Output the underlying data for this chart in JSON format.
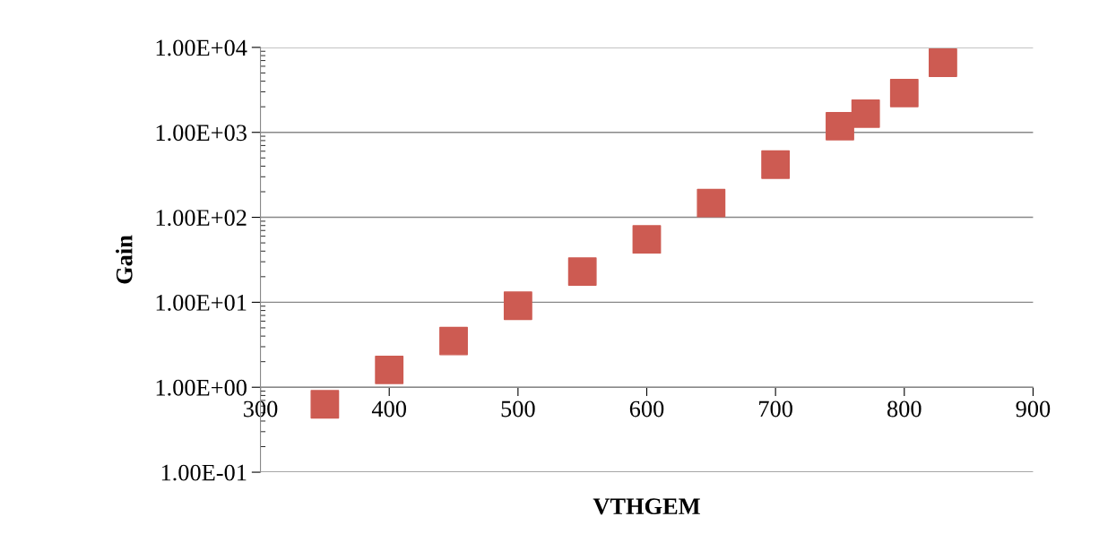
{
  "chart_data": {
    "type": "scatter",
    "xlabel": "VTHGEM",
    "ylabel": "Gain",
    "log": "y",
    "grid": "y",
    "marker": "square",
    "x": [
      350,
      400,
      450,
      500,
      550,
      600,
      650,
      700,
      750,
      770,
      800,
      830
    ],
    "series": [
      {
        "color": "#cd5b52",
        "values": [
          0.63,
          1.6,
          3.5,
          9.1,
          23,
          55,
          147,
          417,
          1180,
          1660,
          2900,
          6600
        ]
      }
    ],
    "xlim": [
      300,
      900
    ],
    "xticks": [
      300,
      400,
      500,
      600,
      700,
      800,
      900
    ],
    "ylim": [
      0.1,
      10000
    ],
    "yticks": [
      {
        "value": 0.1,
        "label": "1.00E-01"
      },
      {
        "value": 1,
        "label": "1.00E+00"
      },
      {
        "value": 10,
        "label": "1.00E+01"
      },
      {
        "value": 100,
        "label": "1.00E+02"
      },
      {
        "value": 1000,
        "label": "1.00E+03"
      },
      {
        "value": 10000,
        "label": "1.00E+04"
      }
    ]
  }
}
